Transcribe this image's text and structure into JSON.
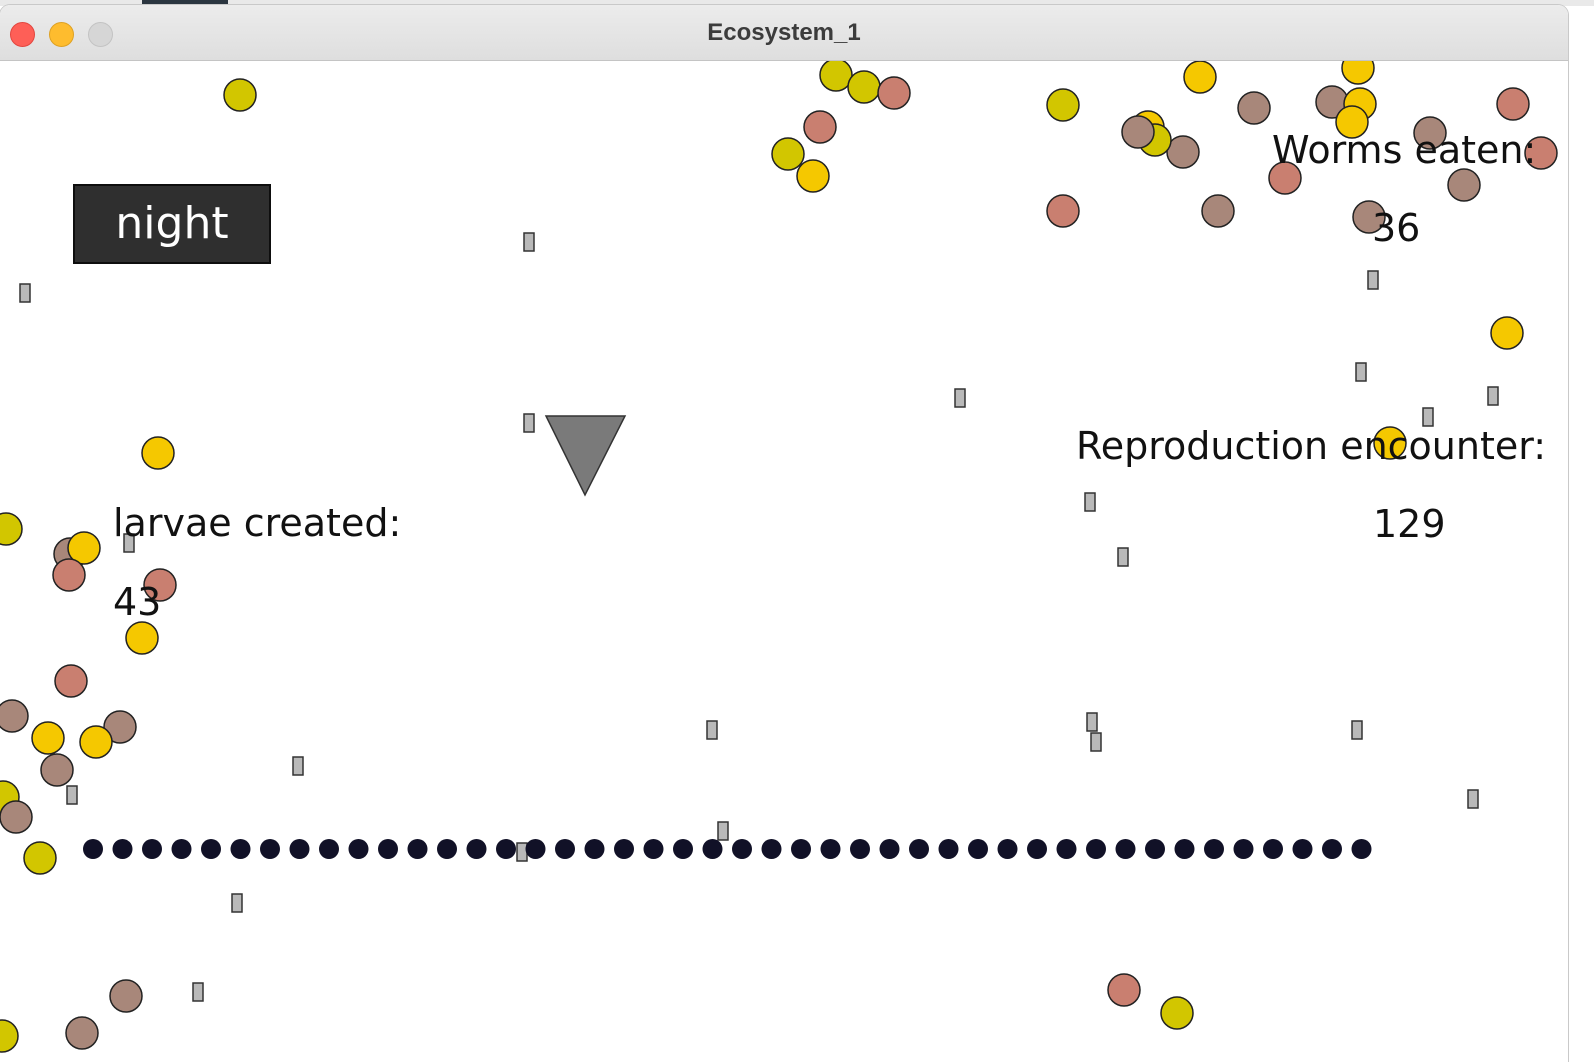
{
  "window": {
    "title": "Ecosystem_1"
  },
  "controls": {
    "mode_button": "night"
  },
  "stats": {
    "worms_eaten_label": "Worms eaten:",
    "worms_eaten_value": "36",
    "larvae_created_label": "larvae created:",
    "larvae_created_value": "43",
    "reproduction_label": "Reproduction encounter:",
    "reproduction_value": "129"
  },
  "colors": {
    "yellow": "#f5c800",
    "olive": "#d2c600",
    "pink": "#c97f70",
    "taupe": "#a8877a",
    "worm": "#b9b9b9",
    "predator": "#7a7a7a",
    "dot": "#111127"
  },
  "icons": [
    "predator-triangle-icon"
  ]
}
